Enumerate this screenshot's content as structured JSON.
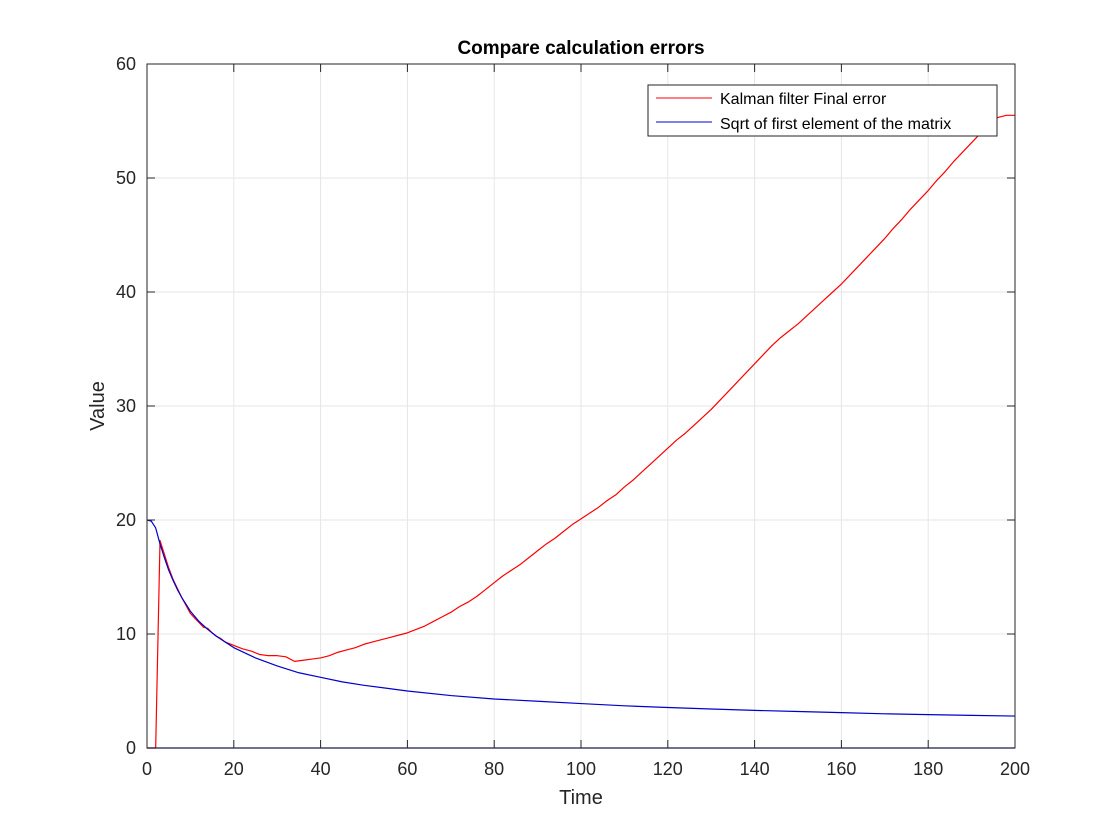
{
  "chart_data": {
    "type": "line",
    "title": "Compare calculation errors",
    "xlabel": "Time",
    "ylabel": "Value",
    "xlim": [
      0,
      200
    ],
    "ylim": [
      0,
      60
    ],
    "xticks": [
      0,
      20,
      40,
      60,
      80,
      100,
      120,
      140,
      160,
      180,
      200
    ],
    "yticks": [
      0,
      10,
      20,
      30,
      40,
      50,
      60
    ],
    "grid": true,
    "legend_position": "top-right",
    "series": [
      {
        "name": "Kalman filter Final error",
        "color": "#ff0000",
        "points": [
          [
            0,
            0
          ],
          [
            2,
            0
          ],
          [
            3,
            18.2
          ],
          [
            4,
            17.0
          ],
          [
            5,
            15.8
          ],
          [
            6,
            14.8
          ],
          [
            7,
            14.0
          ],
          [
            8,
            13.2
          ],
          [
            9,
            12.5
          ],
          [
            10,
            11.8
          ],
          [
            11,
            11.4
          ],
          [
            12,
            11.0
          ],
          [
            13,
            10.6
          ],
          [
            14,
            10.5
          ],
          [
            15,
            10.1
          ],
          [
            16,
            9.8
          ],
          [
            17,
            9.6
          ],
          [
            18,
            9.3
          ],
          [
            20,
            9.0
          ],
          [
            22,
            8.7
          ],
          [
            24,
            8.5
          ],
          [
            26,
            8.2
          ],
          [
            28,
            8.1
          ],
          [
            30,
            8.1
          ],
          [
            32,
            8.0
          ],
          [
            34,
            7.6
          ],
          [
            36,
            7.7
          ],
          [
            38,
            7.8
          ],
          [
            40,
            7.9
          ],
          [
            42,
            8.1
          ],
          [
            44,
            8.4
          ],
          [
            46,
            8.6
          ],
          [
            48,
            8.8
          ],
          [
            50,
            9.1
          ],
          [
            52,
            9.3
          ],
          [
            54,
            9.5
          ],
          [
            56,
            9.7
          ],
          [
            58,
            9.9
          ],
          [
            60,
            10.1
          ],
          [
            62,
            10.4
          ],
          [
            64,
            10.7
          ],
          [
            66,
            11.1
          ],
          [
            68,
            11.5
          ],
          [
            70,
            11.9
          ],
          [
            72,
            12.4
          ],
          [
            74,
            12.8
          ],
          [
            76,
            13.3
          ],
          [
            78,
            13.9
          ],
          [
            80,
            14.5
          ],
          [
            82,
            15.1
          ],
          [
            84,
            15.6
          ],
          [
            86,
            16.1
          ],
          [
            88,
            16.7
          ],
          [
            90,
            17.3
          ],
          [
            92,
            17.9
          ],
          [
            94,
            18.4
          ],
          [
            96,
            19.0
          ],
          [
            98,
            19.6
          ],
          [
            100,
            20.1
          ],
          [
            102,
            20.6
          ],
          [
            104,
            21.1
          ],
          [
            106,
            21.7
          ],
          [
            108,
            22.2
          ],
          [
            110,
            22.9
          ],
          [
            112,
            23.5
          ],
          [
            114,
            24.2
          ],
          [
            116,
            24.9
          ],
          [
            118,
            25.6
          ],
          [
            120,
            26.3
          ],
          [
            122,
            27.0
          ],
          [
            124,
            27.6
          ],
          [
            126,
            28.3
          ],
          [
            128,
            29.0
          ],
          [
            130,
            29.7
          ],
          [
            132,
            30.5
          ],
          [
            134,
            31.3
          ],
          [
            136,
            32.1
          ],
          [
            138,
            32.9
          ],
          [
            140,
            33.7
          ],
          [
            142,
            34.5
          ],
          [
            144,
            35.3
          ],
          [
            146,
            36.0
          ],
          [
            148,
            36.6
          ],
          [
            150,
            37.2
          ],
          [
            152,
            37.9
          ],
          [
            154,
            38.6
          ],
          [
            156,
            39.3
          ],
          [
            158,
            40.0
          ],
          [
            160,
            40.7
          ],
          [
            162,
            41.5
          ],
          [
            164,
            42.3
          ],
          [
            166,
            43.1
          ],
          [
            168,
            43.9
          ],
          [
            170,
            44.7
          ],
          [
            172,
            45.6
          ],
          [
            174,
            46.4
          ],
          [
            176,
            47.3
          ],
          [
            178,
            48.1
          ],
          [
            180,
            48.9
          ],
          [
            182,
            49.8
          ],
          [
            184,
            50.6
          ],
          [
            186,
            51.5
          ],
          [
            188,
            52.3
          ],
          [
            190,
            53.1
          ],
          [
            192,
            53.9
          ],
          [
            194,
            54.6
          ],
          [
            196,
            55.3
          ],
          [
            198,
            55.5
          ],
          [
            200,
            55.5
          ]
        ]
      },
      {
        "name": "Sqrt of first element of the matrix",
        "color": "#0000cc",
        "points": [
          [
            0,
            20.0
          ],
          [
            1,
            19.9
          ],
          [
            2,
            19.3
          ],
          [
            3,
            17.9
          ],
          [
            4,
            16.7
          ],
          [
            5,
            15.6
          ],
          [
            6,
            14.7
          ],
          [
            7,
            13.9
          ],
          [
            8,
            13.2
          ],
          [
            9,
            12.6
          ],
          [
            10,
            12.0
          ],
          [
            12,
            11.1
          ],
          [
            14,
            10.4
          ],
          [
            16,
            9.8
          ],
          [
            18,
            9.3
          ],
          [
            20,
            8.8
          ],
          [
            25,
            7.9
          ],
          [
            30,
            7.2
          ],
          [
            35,
            6.6
          ],
          [
            40,
            6.2
          ],
          [
            45,
            5.8
          ],
          [
            50,
            5.5
          ],
          [
            60,
            5.0
          ],
          [
            70,
            4.6
          ],
          [
            80,
            4.3
          ],
          [
            90,
            4.1
          ],
          [
            100,
            3.9
          ],
          [
            110,
            3.7
          ],
          [
            120,
            3.55
          ],
          [
            130,
            3.42
          ],
          [
            140,
            3.3
          ],
          [
            150,
            3.2
          ],
          [
            160,
            3.1
          ],
          [
            170,
            3.0
          ],
          [
            180,
            2.93
          ],
          [
            190,
            2.86
          ],
          [
            200,
            2.8
          ]
        ]
      },
      {
        "color": "#0000cc",
        "points": [
          [
            0,
            0
          ],
          [
            200,
            0
          ]
        ]
      }
    ]
  }
}
